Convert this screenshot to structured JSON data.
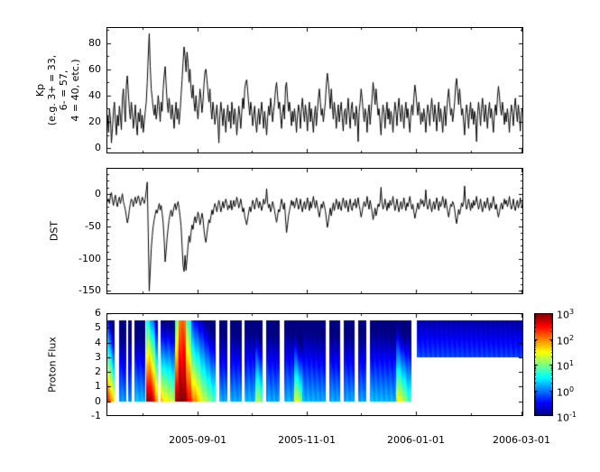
{
  "figure": {
    "background": "#ffffff",
    "foreground": "#000000"
  },
  "chart_data": [
    {
      "type": "line",
      "ylabel_lines": [
        "Kp",
        "(e.g. 3+ = 33,",
        "6- = 57,",
        "4 = 40, etc.)"
      ],
      "ylim": [
        -4,
        92
      ],
      "yticks": [
        0,
        20,
        40,
        60,
        80
      ],
      "y_minor_start": 0,
      "y_minor_step": 10,
      "x_domain_days": 233,
      "x_tick_labels": [
        "2005-09-01",
        "2005-11-01",
        "2006-01-01",
        "2006-03-01"
      ],
      "x_tick_days": [
        51,
        112,
        173,
        232
      ],
      "x_minor_days": [
        20,
        81,
        142,
        204
      ],
      "line_color": "#000000",
      "values": [
        18,
        25,
        12,
        30,
        22,
        4,
        15,
        28,
        35,
        20,
        10,
        25,
        17,
        32,
        24,
        14,
        38,
        45,
        30,
        20,
        48,
        55,
        42,
        30,
        22,
        35,
        27,
        15,
        23,
        33,
        18,
        10,
        27,
        20,
        30,
        15,
        25,
        12,
        20,
        28,
        35,
        50,
        70,
        87,
        62,
        45,
        38,
        30,
        25,
        33,
        22,
        28,
        40,
        32,
        20,
        35,
        28,
        45,
        55,
        62,
        48,
        35,
        27,
        38,
        30,
        22,
        33,
        25,
        15,
        27,
        35,
        22,
        30,
        18,
        28,
        40,
        52,
        65,
        77,
        70,
        58,
        73,
        65,
        50,
        60,
        45,
        38,
        48,
        35,
        28,
        40,
        30,
        22,
        33,
        45,
        38,
        27,
        35,
        48,
        58,
        60,
        52,
        43,
        35,
        45,
        30,
        22,
        35,
        28,
        18,
        25,
        33,
        20,
        4,
        25,
        35,
        27,
        17,
        30,
        22,
        12,
        25,
        33,
        20,
        28,
        15,
        35,
        27,
        18,
        30,
        23,
        10,
        20,
        32,
        25,
        15,
        27,
        38,
        30,
        45,
        50,
        52,
        43,
        33,
        25,
        35,
        28,
        17,
        25,
        32,
        20,
        12,
        22,
        30,
        18,
        27,
        35,
        25,
        15,
        28,
        20,
        10,
        23,
        32,
        25,
        38,
        30,
        20,
        28,
        35,
        45,
        50,
        40,
        30,
        35,
        25,
        15,
        27,
        33,
        22,
        47,
        50,
        38,
        28,
        35,
        27,
        17,
        28,
        20,
        30,
        23,
        12,
        25,
        33,
        27,
        15,
        30,
        38,
        28,
        20,
        33,
        25,
        13,
        27,
        35,
        20,
        30,
        22,
        12,
        25,
        32,
        17,
        28,
        38,
        45,
        35,
        25,
        30,
        20,
        27,
        35,
        48,
        57,
        50,
        40,
        30,
        45,
        33,
        22,
        35,
        27,
        15,
        25,
        33,
        20,
        28,
        35,
        23,
        13,
        27,
        30,
        18,
        28,
        38,
        25,
        15,
        30,
        35,
        22,
        27,
        17,
        32,
        25,
        5,
        28,
        35,
        45,
        38,
        28,
        20,
        30,
        25,
        12,
        27,
        33,
        18,
        28,
        38,
        50,
        43,
        33,
        45,
        35,
        25,
        30,
        20,
        10,
        25,
        33,
        27,
        15,
        27,
        35,
        22,
        30,
        18,
        28,
        23,
        12,
        25,
        35,
        28,
        17,
        30,
        38,
        27,
        20,
        33,
        25,
        15,
        28,
        35,
        23,
        30,
        20,
        12,
        27,
        33,
        25,
        38,
        48,
        42,
        33,
        25,
        35,
        28,
        18,
        27,
        20,
        30,
        23,
        12,
        25,
        33,
        27,
        17,
        30,
        38,
        28,
        20,
        33,
        25,
        13,
        27,
        35,
        20,
        30,
        22,
        12,
        25,
        32,
        17,
        28,
        38,
        45,
        35,
        25,
        30,
        20,
        27,
        35,
        48,
        53,
        43,
        33,
        45,
        35,
        25,
        30,
        20,
        10,
        25,
        33,
        27,
        15,
        27,
        35,
        22,
        30,
        18,
        28,
        23,
        5,
        25,
        35,
        28,
        17,
        30,
        38,
        27,
        20,
        33,
        25,
        15,
        28,
        35,
        23,
        30,
        20,
        12,
        27,
        33,
        25,
        38,
        47,
        40,
        30,
        25,
        35,
        28,
        18,
        27,
        20,
        30,
        23,
        12,
        25,
        33,
        27,
        17,
        30,
        38,
        28,
        20,
        33,
        25,
        13,
        27,
        30,
        22
      ]
    },
    {
      "type": "line",
      "ylabel": "DST",
      "ylim": [
        -155,
        40
      ],
      "yticks": [
        0,
        -50,
        -100,
        -150
      ],
      "y_minor_start": -150,
      "y_minor_step": 10,
      "line_color": "#000000",
      "values": [
        -5,
        -12,
        -8,
        -15,
        -3,
        2,
        -10,
        -18,
        -8,
        -2,
        -14,
        -20,
        -10,
        -5,
        -15,
        -8,
        0,
        -12,
        -18,
        -25,
        -35,
        -45,
        -38,
        -25,
        -15,
        -8,
        -12,
        -20,
        -10,
        -5,
        -15,
        -10,
        -3,
        -8,
        -18,
        -12,
        -5,
        -10,
        -15,
        -8,
        5,
        18,
        -60,
        -150,
        -120,
        -85,
        -65,
        -50,
        -40,
        -32,
        -25,
        -30,
        -22,
        -15,
        -25,
        -18,
        -30,
        -45,
        -70,
        -105,
        -88,
        -68,
        -52,
        -40,
        -30,
        -25,
        -35,
        -28,
        -20,
        -15,
        -25,
        -18,
        -12,
        -22,
        -35,
        -50,
        -80,
        -110,
        -120,
        -95,
        -118,
        -100,
        -80,
        -65,
        -75,
        -60,
        -48,
        -55,
        -42,
        -35,
        -45,
        -38,
        -28,
        -35,
        -48,
        -40,
        -30,
        -38,
        -55,
        -68,
        -75,
        -62,
        -50,
        -40,
        -45,
        -35,
        -25,
        -32,
        -22,
        -15,
        -20,
        -28,
        -18,
        -10,
        -18,
        -28,
        -20,
        -12,
        -22,
        -15,
        -8,
        -15,
        -25,
        -18,
        -22,
        -10,
        -25,
        -18,
        -10,
        -20,
        -15,
        -5,
        -12,
        -22,
        -16,
        -8,
        -18,
        -28,
        -22,
        -35,
        -42,
        -48,
        -38,
        -28,
        -20,
        -28,
        -20,
        -10,
        -16,
        -24,
        -14,
        -6,
        -14,
        -22,
        -12,
        -18,
        -26,
        -18,
        -8,
        -16,
        -12,
        8,
        -14,
        -22,
        -16,
        -28,
        -22,
        -12,
        -18,
        -26,
        -36,
        -44,
        -34,
        -24,
        -28,
        -18,
        -8,
        -16,
        -24,
        -14,
        -38,
        -60,
        -48,
        -34,
        -26,
        -18,
        -10,
        -18,
        -12,
        -22,
        -16,
        -6,
        -14,
        -24,
        -18,
        -8,
        -20,
        -28,
        -18,
        -12,
        -24,
        -16,
        -6,
        -16,
        -26,
        -12,
        -22,
        -14,
        -4,
        -14,
        -22,
        -10,
        -18,
        -28,
        -36,
        -26,
        -16,
        -22,
        -12,
        -18,
        -26,
        -38,
        -52,
        -44,
        -32,
        -22,
        -34,
        -24,
        -14,
        -26,
        -18,
        -8,
        -16,
        -24,
        -12,
        -20,
        -26,
        -14,
        -6,
        -16,
        -22,
        -10,
        -18,
        -28,
        -16,
        -8,
        -22,
        -26,
        -14,
        -18,
        -8,
        -22,
        -16,
        -6,
        -18,
        -26,
        -36,
        -28,
        -18,
        -12,
        -20,
        -16,
        -4,
        -16,
        -24,
        -10,
        -18,
        -28,
        -40,
        -32,
        -22,
        -34,
        -26,
        -16,
        -20,
        -12,
        10,
        -14,
        -24,
        -18,
        -8,
        -18,
        -26,
        -14,
        -22,
        -10,
        -18,
        -14,
        -4,
        -16,
        -26,
        -18,
        -8,
        -20,
        -28,
        -18,
        -12,
        -24,
        -16,
        -6,
        -18,
        -26,
        -14,
        -20,
        -12,
        -4,
        -16,
        -24,
        -16,
        -28,
        -38,
        -30,
        -22,
        -14,
        -24,
        -18,
        -8,
        -16,
        -10,
        -20,
        -14,
        6,
        -16,
        -24,
        -18,
        -8,
        -20,
        -28,
        -18,
        -12,
        -24,
        -16,
        -6,
        -16,
        -26,
        -12,
        -20,
        -14,
        -4,
        -14,
        -22,
        -8,
        -18,
        -28,
        -36,
        -26,
        -16,
        -20,
        -12,
        -16,
        -24,
        -38,
        -46,
        -34,
        -24,
        -32,
        -24,
        -14,
        -20,
        -12,
        12,
        -14,
        -24,
        -18,
        -8,
        -16,
        -26,
        -14,
        -22,
        -10,
        -18,
        -14,
        -4,
        -14,
        -24,
        -18,
        -8,
        -20,
        -28,
        -18,
        -12,
        -22,
        -16,
        -6,
        -18,
        -26,
        -14,
        -22,
        -12,
        -4,
        -16,
        -24,
        -16,
        -28,
        -36,
        -28,
        -20,
        -14,
        -24,
        -18,
        -8,
        -16,
        -10,
        -20,
        -14,
        -4,
        -16,
        -24,
        -18,
        -8,
        -20,
        -26,
        -16,
        -10,
        -22,
        -16,
        -6,
        -16,
        -22,
        -12
      ]
    },
    {
      "type": "heatmap",
      "ylabel": "Proton Flux",
      "ylim": [
        -1,
        6
      ],
      "yticks": [
        6,
        5,
        4,
        3,
        2,
        1,
        0,
        -1
      ],
      "colormap": "jet",
      "scale": "log",
      "clim": [
        0.1,
        1000
      ],
      "value_units": "log10(flux)",
      "band_ymax": 5.5,
      "segments": [
        {
          "d0": 0.5,
          "d1": 4.5,
          "i0": 2.5,
          "i1": 1.4,
          "k": 0.55
        },
        {
          "d0": 7,
          "d1": 11,
          "i0": 0.15,
          "i1": 0.1,
          "k": 0.26
        },
        {
          "d0": 12,
          "d1": 14,
          "i0": 0.1,
          "i1": 0.1,
          "k": 0.26
        },
        {
          "d0": 15.5,
          "d1": 21.5,
          "i0": 0.3,
          "i1": 0.2,
          "k": 0.28
        },
        {
          "d0": 22,
          "d1": 24,
          "i0": 2.9,
          "i1": 3.0,
          "k": 0.45
        },
        {
          "d0": 24,
          "d1": 27,
          "i0": 3.0,
          "i1": 2.4,
          "k": 0.5
        },
        {
          "d0": 27,
          "d1": 28.5,
          "i0": 2.0,
          "i1": 1.8,
          "k": 0.5
        },
        {
          "d0": 30,
          "d1": 33,
          "i0": 1.8,
          "i1": 1.5,
          "k": 0.5
        },
        {
          "d0": 33,
          "d1": 38,
          "i0": 1.5,
          "i1": 1.2,
          "k": 0.45
        },
        {
          "d0": 38,
          "d1": 40,
          "i0": 2.7,
          "i1": 3.0,
          "k": 0.35
        },
        {
          "d0": 40,
          "d1": 44,
          "i0": 3.0,
          "i1": 3.0,
          "k": 0.17
        },
        {
          "d0": 44,
          "d1": 47,
          "i0": 2.8,
          "i1": 2.4,
          "k": 0.35
        },
        {
          "d0": 47,
          "d1": 52,
          "i0": 2.2,
          "i1": 1.7,
          "k": 0.45
        },
        {
          "d0": 52,
          "d1": 61,
          "i0": 1.5,
          "i1": 0.7,
          "k": 0.4
        },
        {
          "d0": 63,
          "d1": 67.5,
          "i0": 0.2,
          "i1": 0.15,
          "k": 0.26
        },
        {
          "d0": 69,
          "d1": 75.5,
          "i0": 0.2,
          "i1": 0.15,
          "k": 0.26
        },
        {
          "d0": 77,
          "d1": 83,
          "i0": 0.25,
          "i1": 0.2,
          "k": 0.26
        },
        {
          "d0": 83,
          "d1": 87,
          "i0": 1.4,
          "i1": 0.9,
          "k": 0.5
        },
        {
          "d0": 89,
          "d1": 96.5,
          "i0": 0.2,
          "i1": 0.15,
          "k": 0.26
        },
        {
          "d0": 99,
          "d1": 104.5,
          "i0": 0.25,
          "i1": 0.2,
          "k": 0.26
        },
        {
          "d0": 104.5,
          "d1": 109,
          "i0": 1.6,
          "i1": 1.0,
          "k": 0.55
        },
        {
          "d0": 109,
          "d1": 122.5,
          "i0": 0.25,
          "i1": 0.15,
          "k": 0.26
        },
        {
          "d0": 124.5,
          "d1": 130.5,
          "i0": 0.2,
          "i1": 0.15,
          "k": 0.26
        },
        {
          "d0": 132.5,
          "d1": 138.5,
          "i0": 0.2,
          "i1": 0.15,
          "k": 0.26
        },
        {
          "d0": 140.5,
          "d1": 145,
          "i0": 0.15,
          "i1": 0.15,
          "k": 0.26
        },
        {
          "d0": 147,
          "d1": 161.5,
          "i0": 0.25,
          "i1": 0.2,
          "k": 0.26
        },
        {
          "d0": 161.5,
          "d1": 167,
          "i0": 1.7,
          "i1": 1.1,
          "k": 0.5
        },
        {
          "d0": 167,
          "d1": 170,
          "i0": 0.9,
          "i1": 0.7,
          "k": 0.4
        },
        {
          "d0": 173,
          "d1": 233,
          "i0": 0.5,
          "i1": 0.45,
          "k": 0.24,
          "ymin": 3
        }
      ]
    }
  ],
  "colorbar": {
    "orientation": "vertical",
    "scale": "log",
    "tick_values": [
      1000,
      100,
      10,
      1,
      0.1
    ],
    "tick_labels": [
      {
        "base": "10",
        "exp": "3"
      },
      {
        "base": "10",
        "exp": "2"
      },
      {
        "base": "10",
        "exp": "1"
      },
      {
        "base": "10",
        "exp": "0"
      },
      {
        "base": "10",
        "exp": "-1"
      }
    ]
  }
}
